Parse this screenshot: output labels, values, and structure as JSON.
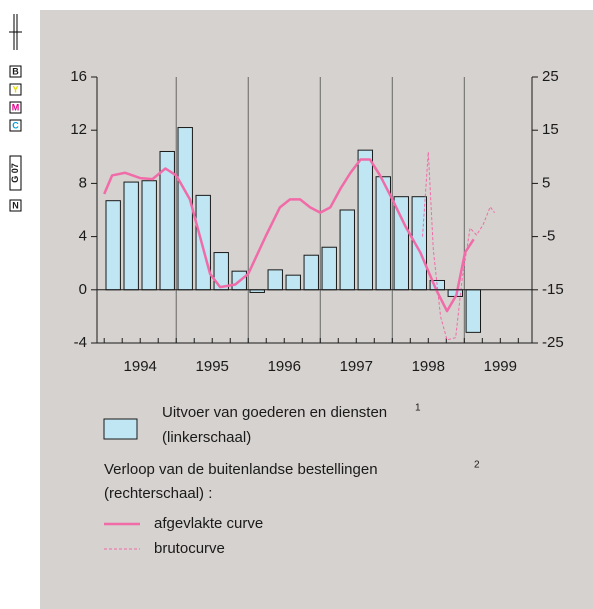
{
  "print_marks": [
    "B",
    "Y",
    "M",
    "C",
    "G 07",
    "N"
  ],
  "chart_data": {
    "type": "bar-line",
    "series": [
      {
        "name": "Uitvoer van goederen en diensten",
        "note": "1",
        "color": "#bfe6f2",
        "axis": "y",
        "x": [
          1994.125,
          1994.375,
          1994.625,
          1994.875,
          1995.125,
          1995.375,
          1995.625,
          1995.875,
          1996.125,
          1996.375,
          1996.625,
          1996.875,
          1997.125,
          1997.375,
          1997.625,
          1997.875,
          1998.125,
          1998.375,
          1998.625,
          1998.875,
          1999.125
        ],
        "values": [
          6.7,
          8.1,
          8.2,
          10.4,
          12.2,
          7.1,
          2.8,
          1.4,
          -0.2,
          1.5,
          1.1,
          2.6,
          3.2,
          6.0,
          10.5,
          8.5,
          7.0,
          7.0,
          0.7,
          -0.5,
          -3.2
        ]
      },
      {
        "name": "afgevlakte curve",
        "color": "#f06ba8",
        "axis": "y2",
        "x": [
          1994.0,
          1994.11,
          1994.29,
          1994.5,
          1994.67,
          1994.85,
          1995.0,
          1995.19,
          1995.33,
          1995.47,
          1995.61,
          1995.82,
          1996.0,
          1996.24,
          1996.44,
          1996.58,
          1996.72,
          1996.86,
          1997.0,
          1997.14,
          1997.28,
          1997.42,
          1997.56,
          1997.69,
          1997.83,
          1998.0,
          1998.18,
          1998.39,
          1998.61,
          1998.76,
          1998.89,
          1999.01,
          1999.13
        ],
        "values": [
          3,
          6.5,
          7,
          6,
          5.8,
          7.8,
          6.5,
          2,
          -5,
          -12,
          -14.5,
          -14,
          -12,
          -5,
          0.5,
          2,
          2,
          0.5,
          -0.5,
          0.5,
          4,
          7,
          9.5,
          9.5,
          6.5,
          2,
          -3,
          -8,
          -15,
          -19,
          -16,
          -8,
          -5.5
        ]
      },
      {
        "name": "brutocurve",
        "color": "#f06ba8",
        "axis": "y2",
        "dashed": true,
        "x": [
          1998.42,
          1998.5,
          1998.57,
          1998.67,
          1998.76,
          1998.88,
          1998.97,
          1999.08,
          1999.17,
          1999.26,
          1999.36,
          1999.42
        ],
        "values": [
          -5,
          10.9,
          -7.5,
          -20,
          -24.4,
          -24,
          -13,
          -3.4,
          -4.7,
          -2.8,
          0.6,
          -0.5
        ]
      }
    ],
    "legend_scale_left": "(linkerschaal)",
    "legend_group": "Verloop van de buitenlandse bestellingen",
    "legend_group_note": "2",
    "legend_scale_right": "(rechterschaal) :",
    "xlim": [
      1993.9,
      1999.94
    ],
    "xticks": [
      {
        "value": 1994.5,
        "label": "1994"
      },
      {
        "value": 1995.5,
        "label": "1995"
      },
      {
        "value": 1996.5,
        "label": "1996"
      },
      {
        "value": 1997.5,
        "label": "1997"
      },
      {
        "value": 1998.5,
        "label": "1998"
      },
      {
        "value": 1999.5,
        "label": "1999"
      }
    ],
    "xminorticks": [
      1994,
      1994.25,
      1994.5,
      1994.75,
      1995,
      1995.25,
      1995.5,
      1995.75,
      1996,
      1996.25,
      1996.5,
      1996.75,
      1997,
      1997.25,
      1997.5,
      1997.75,
      1998,
      1998.25,
      1998.5,
      1998.75,
      1999,
      1999.25,
      1999.5,
      1999.75
    ],
    "vgrid": [
      1995,
      1996,
      1997,
      1998,
      1999
    ],
    "ylim": [
      -4,
      16
    ],
    "yticks": [
      -4,
      0,
      4,
      8,
      12,
      16
    ],
    "y2lim": [
      -25,
      25
    ],
    "y2ticks": [
      -25,
      -15,
      -5,
      5,
      15,
      25
    ]
  }
}
